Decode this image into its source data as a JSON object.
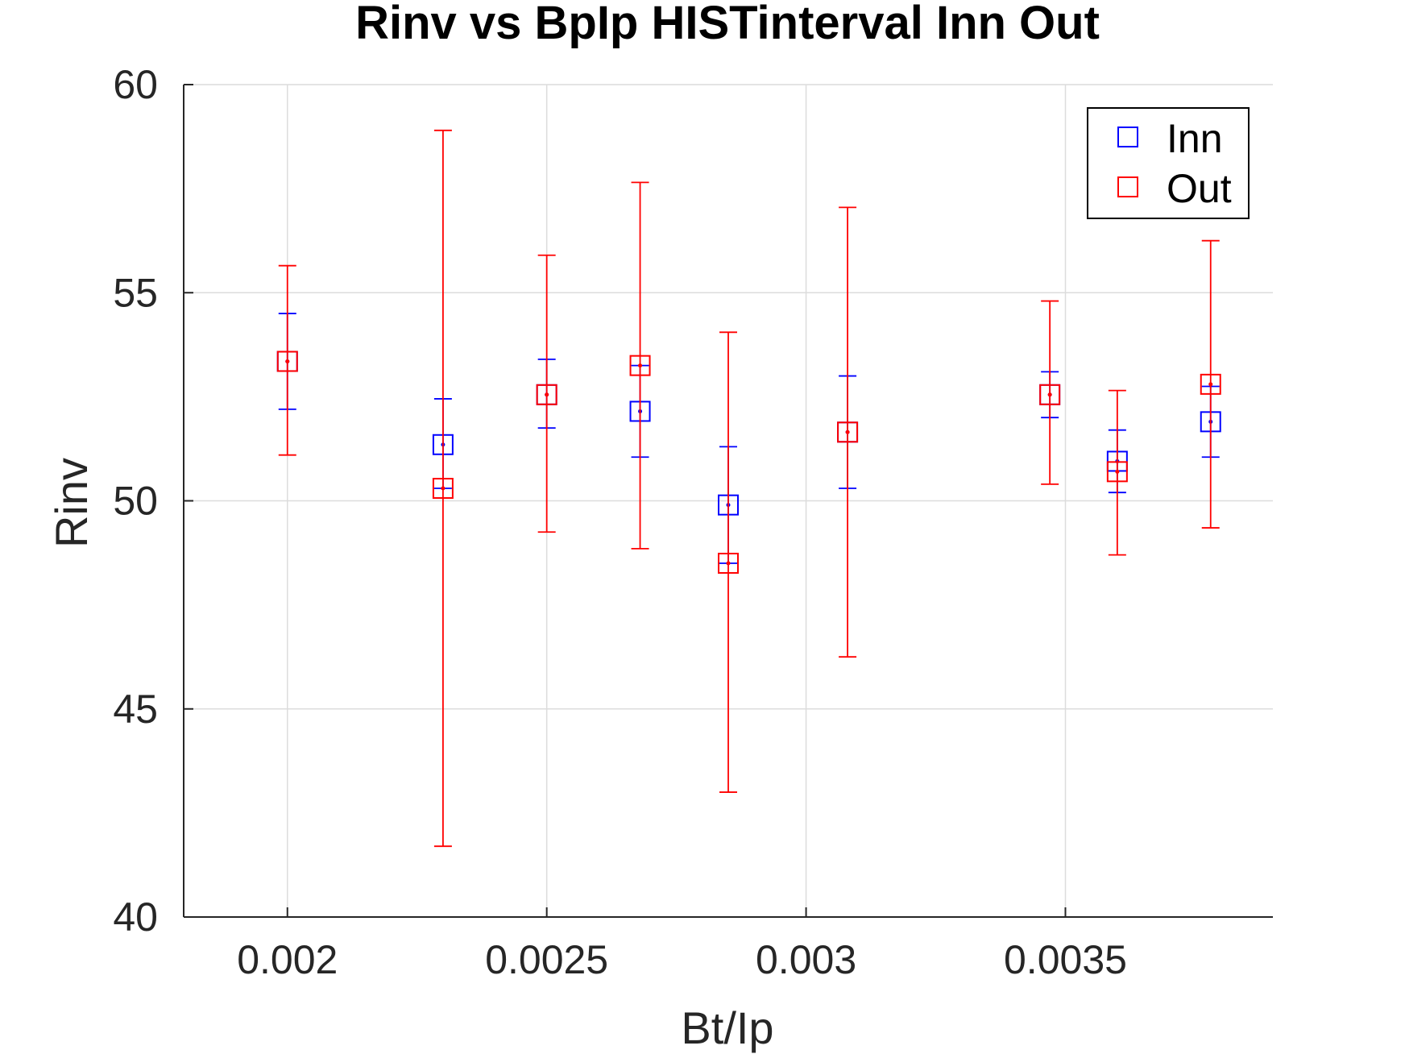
{
  "chart_data": {
    "type": "scatter",
    "title": "Rinv vs BpIp HISTinterval Inn Out",
    "xlabel": "Bt/Ip",
    "ylabel": "Rinv",
    "xlim": [
      0.0018,
      0.0039
    ],
    "ylim": [
      40,
      60
    ],
    "xticks": [
      0.002,
      0.0025,
      0.003,
      0.0035
    ],
    "xtick_labels": [
      "0.002",
      "0.0025",
      "0.003",
      "0.0035"
    ],
    "yticks": [
      40,
      45,
      50,
      55,
      60
    ],
    "ytick_labels": [
      "40",
      "45",
      "50",
      "55",
      "60"
    ],
    "grid": true,
    "legend_position": "top-right",
    "series": [
      {
        "name": "Inn",
        "color": "#0000ff",
        "marker": "square",
        "points": [
          {
            "x": 0.002,
            "y": 53.35,
            "low": 52.2,
            "high": 54.5
          },
          {
            "x": 0.0023,
            "y": 51.35,
            "low": 50.3,
            "high": 52.45
          },
          {
            "x": 0.0025,
            "y": 52.55,
            "low": 51.75,
            "high": 53.4
          },
          {
            "x": 0.00268,
            "y": 52.15,
            "low": 51.05,
            "high": 53.25
          },
          {
            "x": 0.00285,
            "y": 49.9,
            "low": 48.5,
            "high": 51.3
          },
          {
            "x": 0.00308,
            "y": 51.65,
            "low": 50.3,
            "high": 53.0
          },
          {
            "x": 0.00347,
            "y": 52.55,
            "low": 52.0,
            "high": 53.1
          },
          {
            "x": 0.0036,
            "y": 50.95,
            "low": 50.2,
            "high": 51.7
          },
          {
            "x": 0.00378,
            "y": 51.9,
            "low": 51.05,
            "high": 52.75
          }
        ]
      },
      {
        "name": "Out",
        "color": "#ff0000",
        "marker": "square",
        "points": [
          {
            "x": 0.002,
            "y": 53.35,
            "low": 51.1,
            "high": 55.65
          },
          {
            "x": 0.0023,
            "y": 50.3,
            "low": 41.7,
            "high": 58.9
          },
          {
            "x": 0.0025,
            "y": 52.55,
            "low": 49.25,
            "high": 55.9
          },
          {
            "x": 0.00268,
            "y": 53.25,
            "low": 48.85,
            "high": 57.65
          },
          {
            "x": 0.00285,
            "y": 48.5,
            "low": 43.0,
            "high": 54.05
          },
          {
            "x": 0.00308,
            "y": 51.65,
            "low": 46.25,
            "high": 57.05
          },
          {
            "x": 0.00347,
            "y": 52.55,
            "low": 50.4,
            "high": 54.8
          },
          {
            "x": 0.0036,
            "y": 50.7,
            "low": 48.7,
            "high": 52.65
          },
          {
            "x": 0.00378,
            "y": 52.8,
            "low": 49.35,
            "high": 56.25
          }
        ]
      }
    ]
  }
}
